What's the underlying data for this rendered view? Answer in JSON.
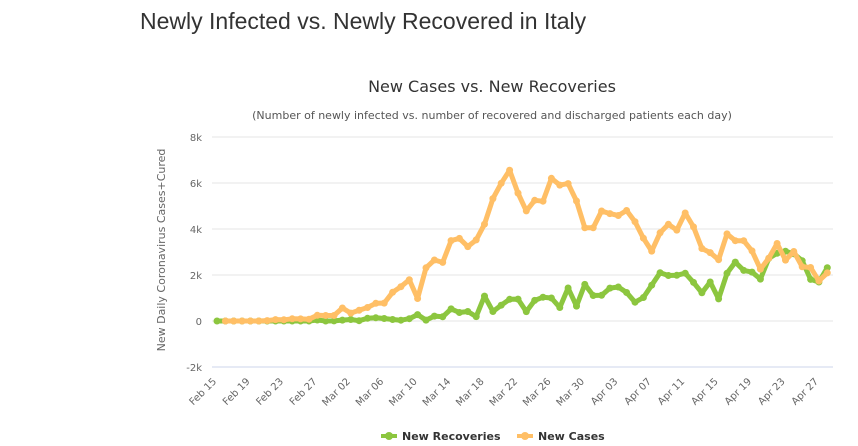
{
  "page": {
    "title": "Newly Infected vs. Newly Recovered in Italy"
  },
  "chart_data": {
    "type": "line",
    "title": "New Cases vs. New Recoveries",
    "subtitle": "(Number of newly infected vs. number of recovered and discharged patients each day)",
    "xlabel": "",
    "ylabel": "New Daily Coronavirus Cases+Cured",
    "ylim": [
      -2000,
      8000
    ],
    "yticks": [
      -2000,
      0,
      2000,
      4000,
      6000,
      8000
    ],
    "ytick_labels": [
      "-2k",
      "0",
      "2k",
      "4k",
      "6k",
      "8k"
    ],
    "grid": true,
    "legend_position": "bottom-center",
    "x": [
      "Feb 15",
      "Feb 16",
      "Feb 17",
      "Feb 18",
      "Feb 19",
      "Feb 20",
      "Feb 21",
      "Feb 22",
      "Feb 23",
      "Feb 24",
      "Feb 25",
      "Feb 26",
      "Feb 27",
      "Feb 28",
      "Feb 29",
      "Mar 01",
      "Mar 02",
      "Mar 03",
      "Mar 04",
      "Mar 05",
      "Mar 06",
      "Mar 07",
      "Mar 08",
      "Mar 09",
      "Mar 10",
      "Mar 11",
      "Mar 12",
      "Mar 13",
      "Mar 14",
      "Mar 15",
      "Mar 16",
      "Mar 17",
      "Mar 18",
      "Mar 19",
      "Mar 20",
      "Mar 21",
      "Mar 22",
      "Mar 23",
      "Mar 24",
      "Mar 25",
      "Mar 26",
      "Mar 27",
      "Mar 28",
      "Mar 29",
      "Mar 30",
      "Mar 31",
      "Apr 01",
      "Apr 02",
      "Apr 03",
      "Apr 04",
      "Apr 05",
      "Apr 06",
      "Apr 07",
      "Apr 08",
      "Apr 09",
      "Apr 10",
      "Apr 11",
      "Apr 12",
      "Apr 13",
      "Apr 14",
      "Apr 15",
      "Apr 16",
      "Apr 17",
      "Apr 18",
      "Apr 19",
      "Apr 20",
      "Apr 21",
      "Apr 22",
      "Apr 23",
      "Apr 24",
      "Apr 25",
      "Apr 26",
      "Apr 27",
      "Apr 28"
    ],
    "xtick_labels": [
      "Feb 15",
      "Feb 19",
      "Feb 23",
      "Feb 27",
      "Mar 02",
      "Mar 06",
      "Mar 10",
      "Mar 14",
      "Mar 18",
      "Mar 22",
      "Mar 26",
      "Mar 30",
      "Apr 03",
      "Apr 07",
      "Apr 11",
      "Apr 15",
      "Apr 19",
      "Apr 23",
      "Apr 27"
    ],
    "series": [
      {
        "name": "New Recoveries",
        "color": "#8cc63f",
        "values": [
          0,
          0,
          0,
          0,
          0,
          0,
          0,
          1,
          0,
          1,
          0,
          2,
          42,
          1,
          4,
          37,
          66,
          11,
          116,
          138,
          109,
          66,
          33,
          102,
          280,
          41,
          213,
          181,
          527,
          369,
          414,
          192,
          1084,
          415,
          689,
          943,
          952,
          408,
          894,
          1036,
          999,
          589,
          1434,
          646,
          1590,
          1109,
          1118,
          1431,
          1480,
          1238,
          819,
          1022,
          1555,
          2099,
          1979,
          1985,
          2079,
          1677,
          1224,
          1695,
          962,
          2072,
          2563,
          2200,
          2128,
          1822,
          2723,
          2943,
          3033,
          2922,
          2622,
          1808,
          1696,
          2317
        ]
      },
      {
        "name": "New Cases",
        "color": "#ffbf66",
        "values": [
          null,
          0,
          0,
          0,
          0,
          0,
          17,
          62,
          53,
          97,
          93,
          78,
          250,
          238,
          240,
          566,
          342,
          466,
          587,
          769,
          778,
          1247,
          1492,
          1797,
          977,
          2313,
          2651,
          2547,
          3497,
          3590,
          3233,
          3526,
          4207,
          5322,
          5986,
          6557,
          5560,
          4789,
          5249,
          5210,
          6203,
          5909,
          5974,
          5217,
          4050,
          4053,
          4782,
          4668,
          4585,
          4805,
          4316,
          3599,
          3039,
          3836,
          4204,
          3951,
          4694,
          4092,
          3153,
          2972,
          2667,
          3786,
          3493,
          3491,
          3047,
          2256,
          2729,
          3370,
          2646,
          3021,
          2357,
          2324,
          1739,
          2091
        ]
      }
    ]
  }
}
